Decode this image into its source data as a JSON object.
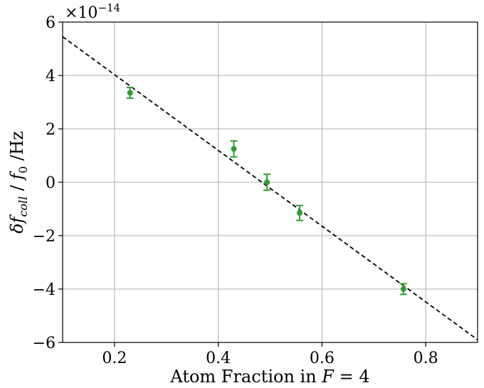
{
  "chart_data": {
    "type": "scatter",
    "title": "",
    "xlabel": "Atom Fraction in F = 4",
    "ylabel": "δf_coll / f_0 /Hz",
    "y_offset_text": "×10",
    "y_offset_exponent": "−14",
    "xlim": [
      0.1,
      0.9
    ],
    "ylim": [
      -6,
      6
    ],
    "x_ticks": [
      0.2,
      0.4,
      0.6,
      0.8
    ],
    "x_tick_labels": [
      "0.2",
      "0.4",
      "0.6",
      "0.8"
    ],
    "y_ticks": [
      -6,
      -4,
      -2,
      0,
      2,
      4,
      6
    ],
    "y_tick_labels": [
      "−6",
      "−4",
      "−2",
      "0",
      "2",
      "4",
      "6"
    ],
    "grid": true,
    "colors": {
      "points": "#2ca02c",
      "fit_line": "#000000"
    },
    "series": [
      {
        "kind": "errorbar",
        "x": [
          0.23,
          0.43,
          0.494,
          0.557,
          0.757
        ],
        "y": [
          3.35,
          1.25,
          0.0,
          -1.15,
          -4.0
        ],
        "yerr": [
          0.2,
          0.3,
          0.3,
          0.28,
          0.2
        ]
      },
      {
        "kind": "fit-line",
        "style": "dashed",
        "x": [
          0.1,
          0.9
        ],
        "y": [
          5.45,
          -5.9
        ]
      }
    ]
  }
}
